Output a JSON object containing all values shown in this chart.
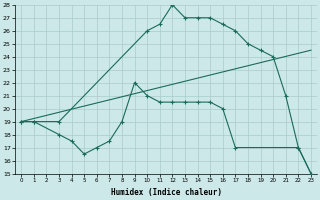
{
  "bg_color": "#cce8e8",
  "line_color": "#1a6b5a",
  "grid_color": "#aacccc",
  "xlabel": "Humidex (Indice chaleur)",
  "ylim": [
    15,
    28
  ],
  "xlim": [
    -0.5,
    23.5
  ],
  "yticks": [
    15,
    16,
    17,
    18,
    19,
    20,
    21,
    22,
    23,
    24,
    25,
    26,
    27,
    28
  ],
  "xticks": [
    0,
    1,
    2,
    3,
    4,
    5,
    6,
    7,
    8,
    9,
    10,
    11,
    12,
    13,
    14,
    15,
    16,
    17,
    18,
    19,
    20,
    21,
    22,
    23
  ],
  "curve1_x": [
    0,
    1,
    3,
    10,
    11,
    12,
    13,
    14,
    15,
    16,
    17,
    18,
    19,
    20,
    21,
    22,
    23
  ],
  "curve1_y": [
    19,
    19,
    19,
    26,
    26.5,
    28,
    27,
    27,
    27,
    26.5,
    26,
    25,
    24.5,
    24,
    21,
    17,
    15
  ],
  "curve2_x": [
    0,
    23
  ],
  "curve2_y": [
    19,
    24.5
  ],
  "curve3_x": [
    0,
    1,
    3,
    4,
    5,
    6,
    7,
    8,
    9,
    10,
    11,
    12,
    13,
    14,
    15,
    16,
    17,
    22,
    23
  ],
  "curve3_y": [
    19,
    19,
    18,
    17.5,
    16.5,
    17,
    17.5,
    19,
    22,
    21,
    20.5,
    20.5,
    20.5,
    20.5,
    20.5,
    20.0,
    17,
    17,
    15
  ]
}
